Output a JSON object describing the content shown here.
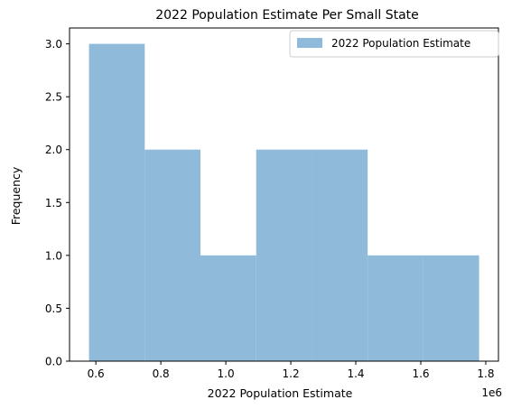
{
  "chart_data": {
    "type": "histogram",
    "title": "2022 Population Estimate Per Small State",
    "xlabel": "2022 Population Estimate",
    "ylabel": "Frequency",
    "x_offset_label": "1e6",
    "bar_color": "#8fbad9",
    "legend": {
      "placement": "top-right",
      "entries": [
        "2022 Population Estimate"
      ]
    },
    "bins": [
      {
        "x0": 0.579,
        "x1": 0.7505,
        "count": 3
      },
      {
        "x0": 0.7505,
        "x1": 0.922,
        "count": 2
      },
      {
        "x0": 0.922,
        "x1": 1.0935,
        "count": 1
      },
      {
        "x0": 1.0935,
        "x1": 1.265,
        "count": 2
      },
      {
        "x0": 1.265,
        "x1": 1.4365,
        "count": 2
      },
      {
        "x0": 1.4365,
        "x1": 1.608,
        "count": 1
      },
      {
        "x0": 1.608,
        "x1": 1.7795,
        "count": 1
      }
    ],
    "xlim": [
      0.519,
      1.839
    ],
    "ylim": [
      0,
      3.15
    ],
    "x_ticks": [
      0.6,
      0.8,
      1.0,
      1.2,
      1.4,
      1.6,
      1.8
    ],
    "x_tick_labels": [
      "0.6",
      "0.8",
      "1.0",
      "1.2",
      "1.4",
      "1.6",
      "1.8"
    ],
    "y_ticks": [
      0,
      0.5,
      1.0,
      1.5,
      2.0,
      2.5,
      3.0
    ],
    "y_tick_labels": [
      "0.0",
      "0.5",
      "1.0",
      "1.5",
      "2.0",
      "2.5",
      "3.0"
    ],
    "grid": false
  }
}
